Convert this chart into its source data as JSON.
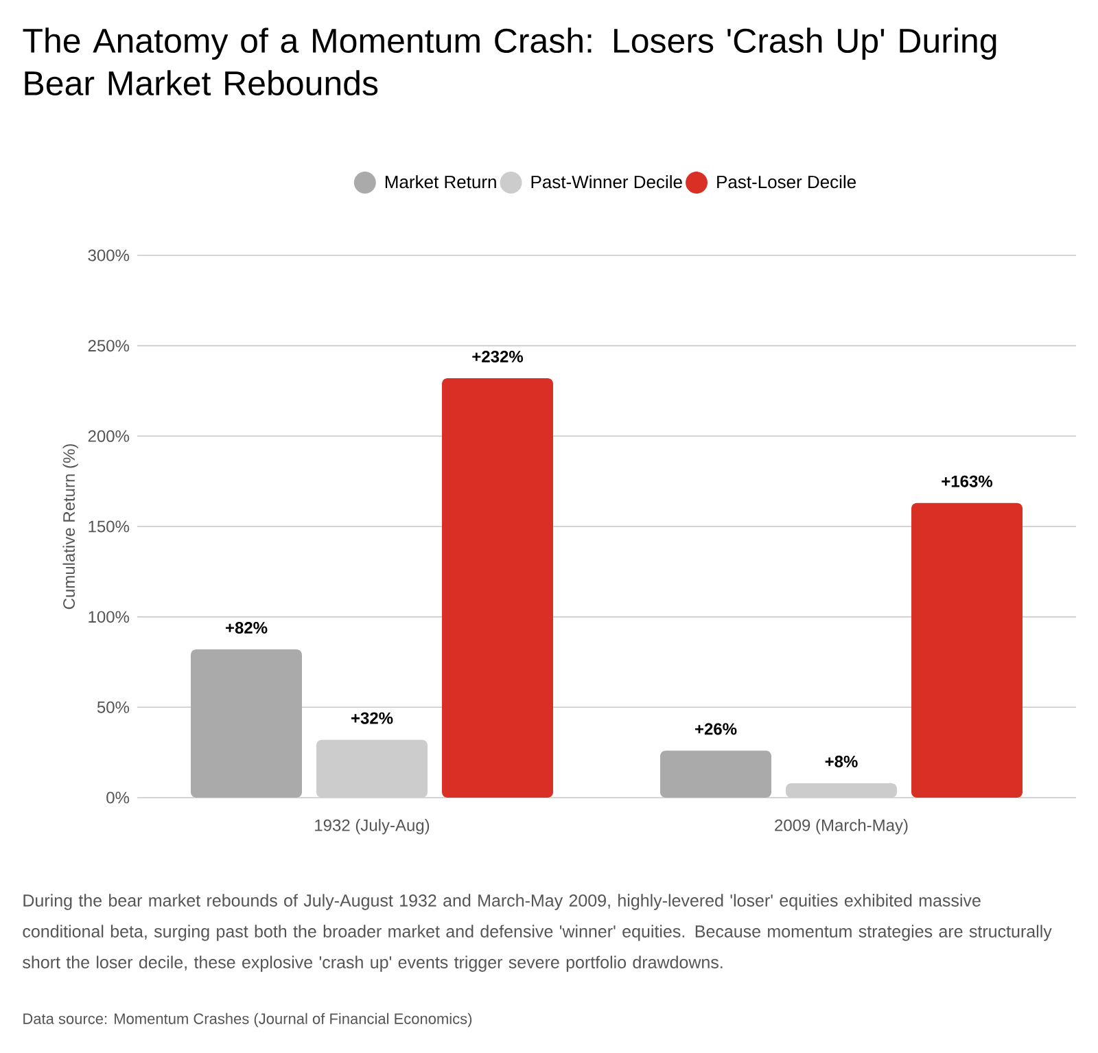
{
  "chart_data": {
    "type": "bar",
    "title": "The Anatomy of a Momentum Crash: Losers 'Crash Up' During Bear Market Rebounds",
    "categories": [
      "1932 (July-Aug)",
      "2009 (March-May)"
    ],
    "ylabel": "Cumulative Return (%)",
    "series": [
      {
        "name": "Market Return",
        "color": "#aaaaaa",
        "values": [
          82,
          26
        ],
        "value_labels": [
          "+82%",
          "+26%"
        ]
      },
      {
        "name": "Past-Winner Decile",
        "color": "#cccccc",
        "values": [
          32,
          8
        ],
        "value_labels": [
          "+32%",
          "+8%"
        ]
      },
      {
        "name": "Past-Loser Decile",
        "color": "#d93025",
        "values": [
          232,
          163
        ],
        "value_labels": [
          "+232%",
          "+163%"
        ]
      }
    ],
    "ylim": [
      0,
      300
    ],
    "yticks": [
      {
        "value": 0,
        "label": "0%"
      },
      {
        "value": 50,
        "label": "50%"
      },
      {
        "value": 100,
        "label": "100%"
      },
      {
        "value": 150,
        "label": "150%"
      },
      {
        "value": 200,
        "label": "200%"
      },
      {
        "value": 250,
        "label": "250%"
      },
      {
        "value": 300,
        "label": "300%"
      }
    ],
    "grid": "y",
    "legend": "top",
    "annotations": [
      "During the bear market rebounds of July-August 1932 and March-May 2009, highly-levered 'loser' equities exhibited massive conditional beta, surging past both the broader market and defensive 'winner' equities. Because momentum strategies are structurally short the loser decile, these explosive 'crash up' events trigger severe portfolio drawdowns.",
      "Data source: Momentum Crashes (Journal of Financial Economics)"
    ]
  }
}
